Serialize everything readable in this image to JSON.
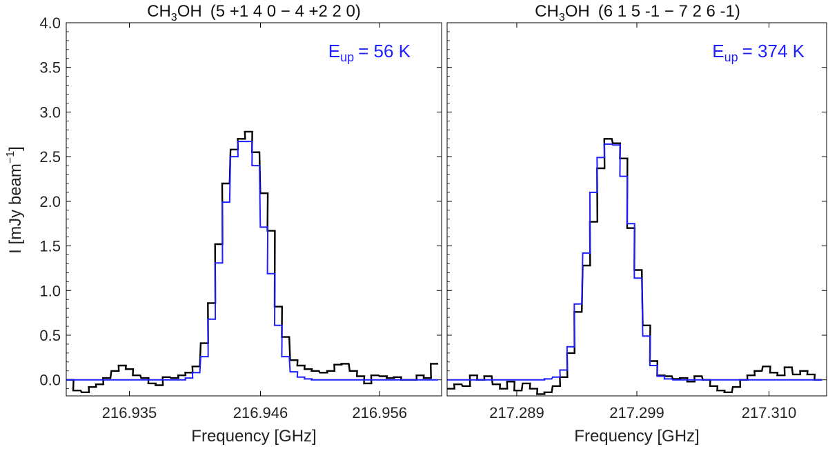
{
  "figure": {
    "ylabel_main": "I [mJy beam",
    "ylabel_sup": "−1",
    "ylabel_close": "]",
    "colors": {
      "observed": "#000000",
      "model": "#1f1fff",
      "annotation": "#1f1fff"
    }
  },
  "chart_data": [
    {
      "type": "line",
      "title_mol_a": "CH",
      "title_mol_sub": "3",
      "title_mol_b": "OH",
      "title_rest": "(5 +1 4 0 − 4 +2 2 0)",
      "eup_sym": "E",
      "eup_sub": "up",
      "eup_rest": "= 56 K",
      "xlabel": "Frequency [GHz]",
      "xlim": [
        216.9297,
        216.9612
      ],
      "ylim": [
        -0.18,
        4.0
      ],
      "xticks": [
        216.935,
        216.946,
        216.956
      ],
      "xtick_labels": [
        "216.935",
        "216.946",
        "216.956"
      ],
      "yticks": [
        0.0,
        0.5,
        1.0,
        1.5,
        2.0,
        2.5,
        3.0,
        3.5,
        4.0
      ],
      "ytick_labels": [
        "0.0",
        "0.5",
        "1.0",
        "1.5",
        "2.0",
        "2.5",
        "3.0",
        "3.5",
        "4.0"
      ],
      "step_width": 0.000625,
      "series": [
        {
          "style": "step-observed",
          "x": [
            216.93,
            216.9306,
            216.9313,
            216.9319,
            216.9325,
            216.9331,
            216.9338,
            216.9344,
            216.935,
            216.9356,
            216.9363,
            216.9369,
            216.9375,
            216.9381,
            216.9388,
            216.9394,
            216.94,
            216.9406,
            216.9413,
            216.9419,
            216.9425,
            216.9431,
            216.9438,
            216.9444,
            216.945,
            216.9456,
            216.9463,
            216.9469,
            216.9475,
            216.9481,
            216.9488,
            216.9494,
            216.95,
            216.9506,
            216.9513,
            216.9519,
            216.9525,
            216.9531,
            216.9538,
            216.9544,
            216.955,
            216.9556,
            216.9563,
            216.9569,
            216.9575,
            216.9581,
            216.9588,
            216.9594,
            216.96,
            216.9606
          ],
          "y": [
            0.0,
            -0.12,
            -0.14,
            -0.08,
            -0.05,
            0.02,
            0.1,
            0.16,
            0.12,
            0.05,
            0.02,
            -0.04,
            -0.06,
            0.03,
            0.02,
            0.05,
            0.08,
            0.15,
            0.41,
            0.86,
            1.52,
            2.2,
            2.58,
            2.7,
            2.78,
            2.55,
            2.09,
            1.67,
            0.82,
            0.48,
            0.22,
            0.16,
            0.12,
            0.1,
            0.08,
            0.1,
            0.17,
            0.18,
            0.1,
            0.04,
            -0.04,
            0.05,
            0.04,
            0.02,
            0.03,
            0.0,
            0.0,
            0.05,
            0.02,
            0.18
          ]
        },
        {
          "style": "step-model",
          "x": [
            216.93,
            216.9306,
            216.9313,
            216.9319,
            216.9325,
            216.9331,
            216.9338,
            216.9344,
            216.935,
            216.9356,
            216.9363,
            216.9369,
            216.9375,
            216.9381,
            216.9388,
            216.9394,
            216.94,
            216.9406,
            216.9413,
            216.9419,
            216.9425,
            216.9431,
            216.9438,
            216.9444,
            216.945,
            216.9456,
            216.9463,
            216.9469,
            216.9475,
            216.9481,
            216.9488,
            216.9494,
            216.95,
            216.9506,
            216.9513,
            216.9519,
            216.9525,
            216.9531,
            216.9538,
            216.9544,
            216.955,
            216.9556,
            216.9563,
            216.9569,
            216.9575,
            216.9581,
            216.9588,
            216.9594,
            216.96,
            216.9606
          ],
          "y": [
            0.0,
            0.0,
            0.0,
            0.0,
            0.0,
            0.0,
            0.0,
            0.0,
            0.0,
            0.0,
            0.0,
            0.0,
            0.0,
            0.0,
            0.0,
            0.0,
            0.02,
            0.08,
            0.26,
            0.68,
            1.31,
            1.99,
            2.5,
            2.67,
            2.67,
            2.4,
            1.71,
            1.19,
            0.61,
            0.26,
            0.09,
            0.03,
            0.01,
            0.0,
            0.0,
            0.0,
            0.0,
            0.0,
            0.0,
            0.0,
            0.0,
            0.0,
            0.0,
            0.0,
            0.0,
            0.0,
            0.0,
            0.0,
            0.0,
            0.0
          ]
        }
      ]
    },
    {
      "type": "line",
      "title_mol_a": "CH",
      "title_mol_sub": "3",
      "title_mol_b": "OH",
      "title_rest": "(6 1 5 -1 − 7 2 6 -1)",
      "eup_sym": "E",
      "eup_sub": "up",
      "eup_rest": "= 374 K",
      "xlabel": "Frequency [GHz]",
      "xlim": [
        217.2832,
        217.3148
      ],
      "ylim": [
        -0.18,
        4.0
      ],
      "xticks": [
        217.289,
        217.299,
        217.31
      ],
      "xtick_labels": [
        "217.289",
        "217.299",
        "217.310"
      ],
      "yticks": [
        0.0,
        0.5,
        1.0,
        1.5,
        2.0,
        2.5,
        3.0,
        3.5,
        4.0
      ],
      "ytick_labels": [
        "0.0",
        "0.5",
        "1.0",
        "1.5",
        "2.0",
        "2.5",
        "3.0",
        "3.5",
        "4.0"
      ],
      "step_width": 0.000625,
      "series": [
        {
          "style": "step-observed",
          "x": [
            217.2835,
            217.2841,
            217.2848,
            217.2854,
            217.286,
            217.2866,
            217.2873,
            217.2879,
            217.2885,
            217.2891,
            217.2898,
            217.2904,
            217.291,
            217.2916,
            217.2923,
            217.2929,
            217.2935,
            217.2941,
            217.2948,
            217.2954,
            217.296,
            217.2966,
            217.2973,
            217.2979,
            217.2985,
            217.2991,
            217.2998,
            217.3004,
            217.301,
            217.3016,
            217.3023,
            217.3029,
            217.3035,
            217.3041,
            217.3048,
            217.3054,
            217.306,
            217.3066,
            217.3073,
            217.3079,
            217.3085,
            217.3091,
            217.3098,
            217.3104,
            217.311,
            217.3116,
            217.3123,
            217.3129,
            217.3135,
            217.3141
          ],
          "y": [
            -0.1,
            -0.05,
            -0.07,
            0.05,
            0.0,
            0.04,
            -0.05,
            -0.1,
            -0.02,
            -0.12,
            -0.04,
            -0.1,
            -0.16,
            -0.14,
            -0.07,
            0.03,
            0.3,
            0.76,
            1.28,
            1.77,
            2.37,
            2.7,
            2.65,
            2.48,
            1.7,
            1.23,
            0.61,
            0.21,
            0.05,
            0.04,
            0.01,
            0.02,
            -0.02,
            0.04,
            0.0,
            -0.07,
            -0.12,
            -0.14,
            -0.08,
            0.0,
            0.05,
            0.1,
            0.15,
            0.08,
            0.05,
            0.14,
            0.06,
            0.1,
            0.06,
            0.0
          ]
        },
        {
          "style": "step-model",
          "x": [
            217.2835,
            217.2841,
            217.2848,
            217.2854,
            217.286,
            217.2866,
            217.2873,
            217.2879,
            217.2885,
            217.2891,
            217.2898,
            217.2904,
            217.291,
            217.2916,
            217.2923,
            217.2929,
            217.2935,
            217.2941,
            217.2948,
            217.2954,
            217.296,
            217.2966,
            217.2973,
            217.2979,
            217.2985,
            217.2991,
            217.2998,
            217.3004,
            217.301,
            217.3016,
            217.3023,
            217.3029,
            217.3035,
            217.3041,
            217.3048,
            217.3054,
            217.306,
            217.3066,
            217.3073,
            217.3079,
            217.3085,
            217.3091,
            217.3098,
            217.3104,
            217.311,
            217.3116,
            217.3123,
            217.3129,
            217.3135,
            217.3141
          ],
          "y": [
            0.0,
            0.0,
            0.0,
            0.0,
            0.0,
            0.0,
            0.0,
            0.0,
            0.0,
            0.0,
            0.0,
            0.0,
            0.0,
            0.01,
            0.03,
            0.11,
            0.37,
            0.85,
            1.42,
            2.1,
            2.49,
            2.64,
            2.63,
            2.28,
            1.75,
            1.14,
            0.49,
            0.16,
            0.04,
            0.01,
            0.0,
            0.0,
            0.0,
            0.0,
            0.0,
            0.0,
            0.0,
            0.0,
            0.0,
            0.0,
            0.0,
            0.0,
            0.0,
            0.0,
            0.0,
            0.0,
            0.0,
            0.0,
            0.0,
            0.0
          ]
        }
      ]
    }
  ]
}
